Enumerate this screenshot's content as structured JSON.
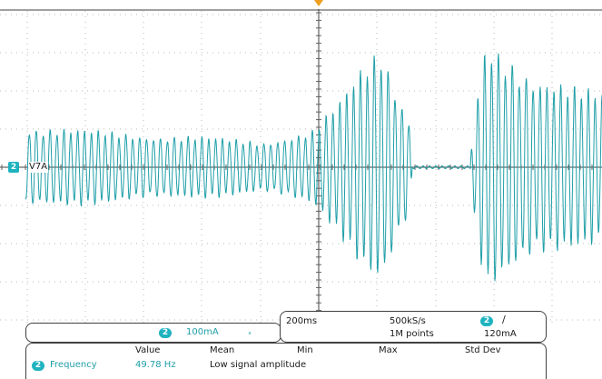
{
  "channel": {
    "number": "2",
    "ref_label": "V7A",
    "scale": "100mA",
    "bandwidth_icon": "bandwidth-limit-icon",
    "trace_color": "#1f9fa8"
  },
  "timebase": {
    "horizontal_scale": "200ms",
    "sample_rate": "500kS/s",
    "record_length": "1M points"
  },
  "trigger": {
    "source": "2",
    "slope_icon": "rising-edge-icon",
    "level": "120mA",
    "marker_color": "#f0a020"
  },
  "measurements": {
    "headers": [
      "Value",
      "Mean",
      "Min",
      "Max",
      "Std Dev"
    ],
    "rows": [
      {
        "channel": "2",
        "name": "Frequency",
        "value": "49.78 Hz",
        "status": "Low signal amplitude"
      }
    ]
  }
}
